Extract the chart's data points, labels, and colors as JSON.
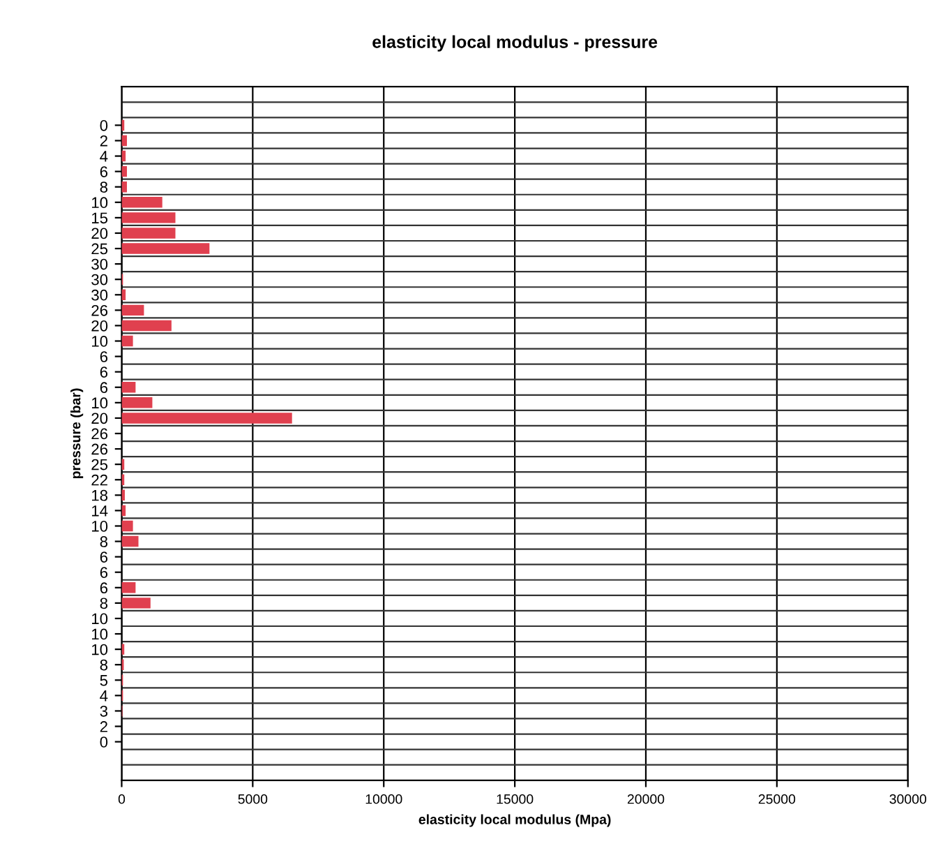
{
  "chart_data": {
    "type": "bar",
    "orientation": "horizontal",
    "title": "elasticity local modulus - pressure",
    "xlabel": "elasticity local modulus (Mpa)",
    "ylabel": "pressure (bar)",
    "categories": [
      "0",
      "2",
      "4",
      "6",
      "8",
      "10",
      "15",
      "20",
      "25",
      "30",
      "30",
      "30",
      "26",
      "20",
      "10",
      "6",
      "6",
      "6",
      "10",
      "20",
      "26",
      "26",
      "25",
      "22",
      "18",
      "14",
      "10",
      "8",
      "6",
      "6",
      "6",
      "8",
      "10",
      "10",
      "10",
      "8",
      "5",
      "4",
      "3",
      "2",
      "0"
    ],
    "values": [
      100,
      200,
      150,
      200,
      200,
      1550,
      2050,
      2050,
      3350,
      0,
      50,
      150,
      850,
      1900,
      430,
      0,
      0,
      530,
      1170,
      6500,
      0,
      0,
      100,
      100,
      120,
      150,
      430,
      640,
      0,
      0,
      530,
      1100,
      0,
      0,
      100,
      80,
      50,
      50,
      30,
      null,
      0
    ],
    "color": "#e0404f",
    "xlim": [
      0,
      30000
    ],
    "xticks": [
      0,
      5000,
      10000,
      15000,
      20000,
      25000,
      30000
    ],
    "grid": true
  }
}
